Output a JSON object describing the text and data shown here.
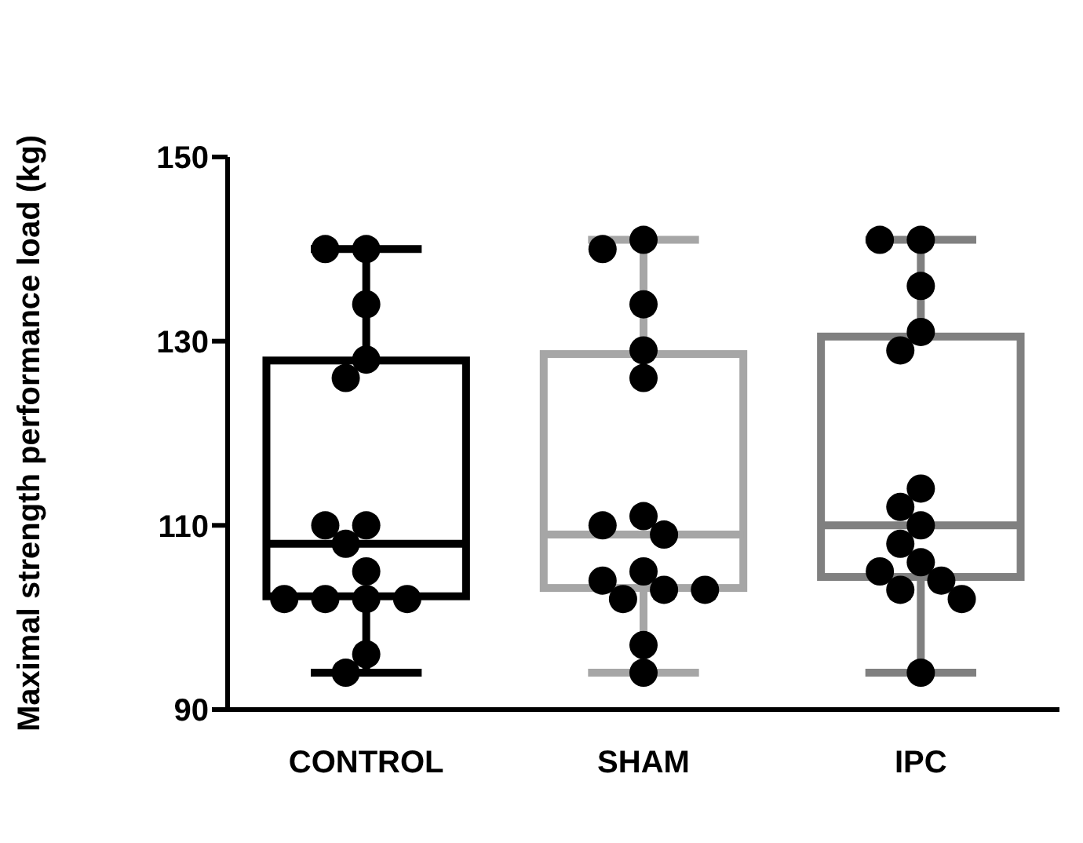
{
  "chart_data": {
    "type": "box",
    "ylabel": "Maximal strength performance load (kg)",
    "categories": [
      "CONTROL",
      "SHAM",
      "IPC"
    ],
    "ylim": [
      90,
      150
    ],
    "yticks": [
      90,
      110,
      130,
      150
    ],
    "marker": "circle",
    "colors": [
      "#000000",
      "#a6a6a6",
      "#808080"
    ],
    "boxes": [
      {
        "low": 94,
        "q1": 102.3,
        "median": 108,
        "q3": 127.9,
        "high": 140
      },
      {
        "low": 94,
        "q1": 103.2,
        "median": 109,
        "q3": 128.6,
        "high": 141
      },
      {
        "low": 94,
        "q1": 104.4,
        "median": 110,
        "q3": 130.5,
        "high": 141
      }
    ],
    "series": [
      {
        "type": "scatter",
        "color": "#000000",
        "x": [
          "CONTROL",
          "CONTROL",
          "CONTROL",
          "CONTROL",
          "CONTROL",
          "CONTROL",
          "CONTROL",
          "CONTROL",
          "CONTROL",
          "CONTROL",
          "CONTROL",
          "CONTROL",
          "CONTROL",
          "CONTROL",
          "CONTROL",
          "SHAM",
          "SHAM",
          "SHAM",
          "SHAM",
          "SHAM",
          "SHAM",
          "SHAM",
          "SHAM",
          "SHAM",
          "SHAM",
          "SHAM",
          "SHAM",
          "SHAM",
          "SHAM",
          "SHAM",
          "IPC",
          "IPC",
          "IPC",
          "IPC",
          "IPC",
          "IPC",
          "IPC",
          "IPC",
          "IPC",
          "IPC",
          "IPC",
          "IPC",
          "IPC",
          "IPC",
          "IPC"
        ],
        "values": [
          140,
          140,
          134,
          128,
          126,
          110,
          110,
          108,
          105,
          102,
          102,
          102,
          102,
          96,
          94,
          141,
          140,
          134,
          129,
          126,
          111,
          110,
          109,
          105,
          104,
          103,
          103,
          102,
          97,
          94,
          141,
          141,
          136,
          131,
          129,
          114,
          112,
          110,
          108,
          106,
          105,
          104,
          103,
          102,
          94
        ]
      }
    ]
  }
}
